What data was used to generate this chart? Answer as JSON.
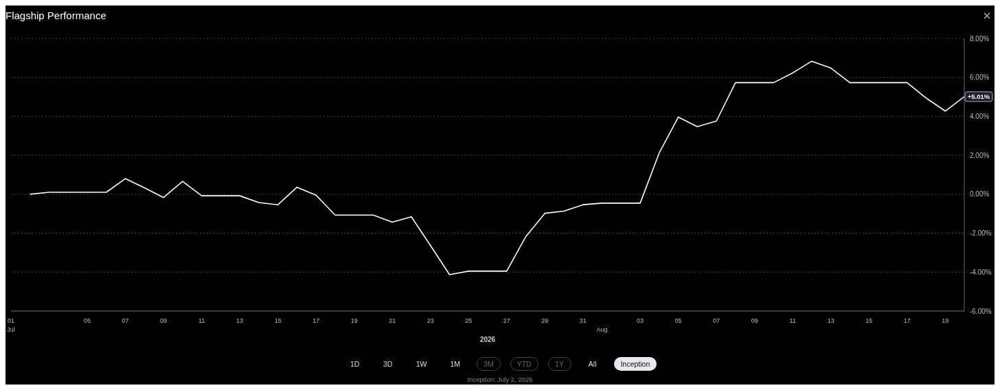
{
  "chart_data": {
    "type": "line",
    "title": "Flagship Performance",
    "xlabel": "2026",
    "x": [
      "2026-07-02",
      "2026-07-03",
      "2026-07-04",
      "2026-07-05",
      "2026-07-06",
      "2026-07-07",
      "2026-07-08",
      "2026-07-09",
      "2026-07-10",
      "2026-07-11",
      "2026-07-12",
      "2026-07-13",
      "2026-07-14",
      "2026-07-15",
      "2026-07-16",
      "2026-07-17",
      "2026-07-18",
      "2026-07-19",
      "2026-07-20",
      "2026-07-21",
      "2026-07-22",
      "2026-07-23",
      "2026-07-24",
      "2026-07-25",
      "2026-07-26",
      "2026-07-27",
      "2026-07-28",
      "2026-07-29",
      "2026-07-30",
      "2026-07-31",
      "2026-08-01",
      "2026-08-02",
      "2026-08-03",
      "2026-08-04",
      "2026-08-05",
      "2026-08-06",
      "2026-08-07",
      "2026-08-08",
      "2026-08-09",
      "2026-08-10",
      "2026-08-11",
      "2026-08-12",
      "2026-08-13",
      "2026-08-14",
      "2026-08-15",
      "2026-08-16",
      "2026-08-17",
      "2026-08-18",
      "2026-08-19",
      "2026-08-20"
    ],
    "series": [
      {
        "color": "#ffffff",
        "values": [
          0.0,
          0.1,
          0.1,
          0.1,
          0.1,
          0.8,
          0.33,
          -0.17,
          0.66,
          -0.08,
          -0.08,
          -0.08,
          -0.43,
          -0.54,
          0.36,
          -0.05,
          -1.07,
          -1.07,
          -1.07,
          -1.43,
          -1.16,
          -2.63,
          -4.13,
          -3.95,
          -3.95,
          -3.95,
          -2.18,
          -0.98,
          -0.87,
          -0.54,
          -0.46,
          -0.46,
          -0.46,
          2.12,
          3.96,
          3.47,
          3.76,
          5.73,
          5.73,
          5.73,
          6.23,
          6.83,
          6.48,
          5.73,
          5.73,
          5.73,
          5.73,
          4.94,
          4.27,
          5.01
        ]
      }
    ],
    "xlim": [
      "2026-07-01",
      "2026-08-20"
    ],
    "x2lim": [
      "2026-07-01",
      "2026-08-20"
    ],
    "x2ticks": [
      {
        "value": "2026-07-01",
        "label": "Jul"
      },
      {
        "value": "2026-08-01",
        "label": "Aug"
      }
    ],
    "xticks": [
      {
        "value": "2026-07-01",
        "label": "01"
      },
      {
        "value": "2026-07-05",
        "label": "05"
      },
      {
        "value": "2026-07-07",
        "label": "07"
      },
      {
        "value": "2026-07-09",
        "label": "09"
      },
      {
        "value": "2026-07-11",
        "label": "11"
      },
      {
        "value": "2026-07-13",
        "label": "13"
      },
      {
        "value": "2026-07-15",
        "label": "15"
      },
      {
        "value": "2026-07-17",
        "label": "17"
      },
      {
        "value": "2026-07-19",
        "label": "19"
      },
      {
        "value": "2026-07-21",
        "label": "21"
      },
      {
        "value": "2026-07-23",
        "label": "23"
      },
      {
        "value": "2026-07-25",
        "label": "25"
      },
      {
        "value": "2026-07-27",
        "label": "27"
      },
      {
        "value": "2026-07-29",
        "label": "29"
      },
      {
        "value": "2026-07-31",
        "label": "31"
      },
      {
        "value": "2026-08-03",
        "label": "03"
      },
      {
        "value": "2026-08-05",
        "label": "05"
      },
      {
        "value": "2026-08-07",
        "label": "07"
      },
      {
        "value": "2026-08-09",
        "label": "09"
      },
      {
        "value": "2026-08-11",
        "label": "11"
      },
      {
        "value": "2026-08-13",
        "label": "13"
      },
      {
        "value": "2026-08-15",
        "label": "15"
      },
      {
        "value": "2026-08-17",
        "label": "17"
      },
      {
        "value": "2026-08-19",
        "label": "19"
      }
    ],
    "ylim": [
      -6,
      8
    ],
    "yticks": [
      {
        "value": -6,
        "label": "-6.00%"
      },
      {
        "value": -4,
        "label": "-4.00%"
      },
      {
        "value": -2,
        "label": "-2.00%"
      },
      {
        "value": 0,
        "label": "0.00%"
      },
      {
        "value": 2,
        "label": "2.00%"
      },
      {
        "value": 4,
        "label": "4.00%"
      },
      {
        "value": 6,
        "label": "6.00%"
      },
      {
        "value": 8,
        "label": "8.00%"
      }
    ],
    "grid": "y",
    "marker": "none",
    "line_style": "solid",
    "legend": false,
    "annotations": [
      {
        "text": "+5.01%",
        "x": "2026-08-20",
        "y": 5.01
      },
      "1D",
      "3D",
      "1W",
      "1M",
      "3M",
      "YTD",
      "1Y",
      "All",
      "Inception",
      "Inception: July 2, 2026"
    ]
  }
}
